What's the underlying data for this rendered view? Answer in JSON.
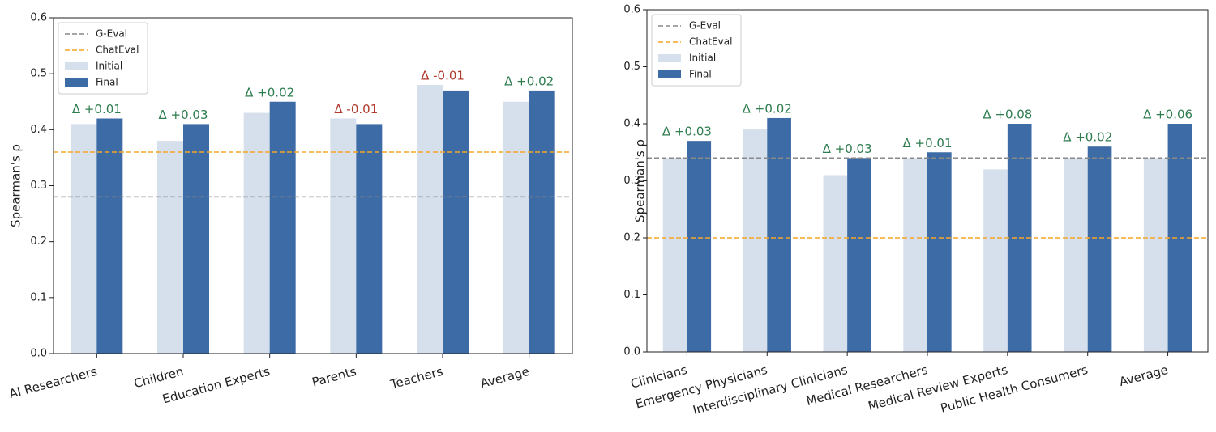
{
  "chart_data": [
    {
      "type": "grouped_bar",
      "ylabel": "Spearman's ρ",
      "categories": [
        "AI Researchers",
        "Children",
        "Education Experts",
        "Parents",
        "Teachers",
        "Average"
      ],
      "series": [
        {
          "name": "Initial",
          "color": "#d6e0ec",
          "values": [
            0.41,
            0.38,
            0.43,
            0.42,
            0.48,
            0.45
          ]
        },
        {
          "name": "Final",
          "color": "#3d6ba6",
          "values": [
            0.42,
            0.41,
            0.45,
            0.41,
            0.47,
            0.47
          ]
        }
      ],
      "annotations": [
        "Δ +0.01",
        "Δ +0.03",
        "Δ +0.02",
        "Δ -0.01",
        "Δ -0.01",
        "Δ +0.02"
      ],
      "annotation_colors": [
        "#2e7d4f",
        "#2e7d4f",
        "#2e7d4f",
        "#b03a2e",
        "#b03a2e",
        "#2e7d4f"
      ],
      "reference_lines": [
        {
          "name": "G-Eval",
          "value": 0.28,
          "color": "#888888"
        },
        {
          "name": "ChatEval",
          "value": 0.36,
          "color": "#f5a623"
        }
      ],
      "ylim": [
        0,
        0.6
      ],
      "yticks": [
        {
          "value": 0,
          "label": "0.0"
        },
        0.1,
        0.2,
        0.3,
        0.4,
        0.5,
        0.6
      ],
      "legend": "upper left"
    },
    {
      "type": "grouped_bar",
      "ylabel": "Spearman's ρ",
      "categories": [
        "Clinicians",
        "Emergency Physicians",
        "Interdisciplinary Clinicians",
        "Medical Researchers",
        "Medical Review Experts",
        "Public Health Consumers",
        "Average"
      ],
      "series": [
        {
          "name": "Initial",
          "color": "#d6e0ec",
          "values": [
            0.34,
            0.39,
            0.31,
            0.34,
            0.32,
            0.34,
            0.34
          ]
        },
        {
          "name": "Final",
          "color": "#3d6ba6",
          "values": [
            0.37,
            0.41,
            0.34,
            0.35,
            0.4,
            0.36,
            0.4
          ]
        }
      ],
      "annotations": [
        "Δ +0.03",
        "Δ +0.02",
        "Δ +0.03",
        "Δ +0.01",
        "Δ +0.08",
        "Δ +0.02",
        "Δ +0.06"
      ],
      "annotation_colors": [
        "#2e7d4f",
        "#2e7d4f",
        "#2e7d4f",
        "#2e7d4f",
        "#2e7d4f",
        "#2e7d4f",
        "#2e7d4f"
      ],
      "reference_lines": [
        {
          "name": "G-Eval",
          "value": 0.34,
          "color": "#888888"
        },
        {
          "name": "ChatEval",
          "value": 0.2,
          "color": "#f5a623"
        }
      ],
      "ylim": [
        0,
        0.6
      ],
      "yticks": [
        {
          "value": 0,
          "label": "0.0"
        },
        0.1,
        0.2,
        0.3,
        0.4,
        0.5,
        0.6
      ],
      "legend": "upper left"
    }
  ]
}
